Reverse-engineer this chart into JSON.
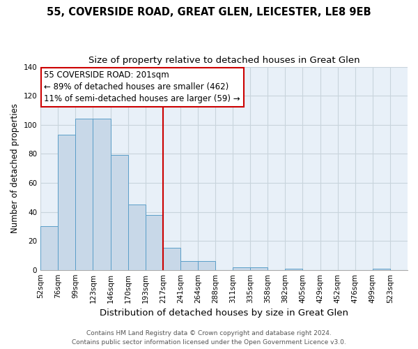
{
  "title": "55, COVERSIDE ROAD, GREAT GLEN, LEICESTER, LE8 9EB",
  "subtitle": "Size of property relative to detached houses in Great Glen",
  "xlabel": "Distribution of detached houses by size in Great Glen",
  "ylabel": "Number of detached properties",
  "bar_labels": [
    "52sqm",
    "76sqm",
    "99sqm",
    "123sqm",
    "146sqm",
    "170sqm",
    "193sqm",
    "217sqm",
    "241sqm",
    "264sqm",
    "288sqm",
    "311sqm",
    "335sqm",
    "358sqm",
    "382sqm",
    "405sqm",
    "429sqm",
    "452sqm",
    "476sqm",
    "499sqm",
    "523sqm"
  ],
  "bar_values": [
    30,
    93,
    104,
    104,
    79,
    45,
    38,
    15,
    6,
    6,
    0,
    2,
    2,
    0,
    1,
    0,
    0,
    0,
    0,
    1,
    0
  ],
  "bar_color": "#c8d8e8",
  "bar_edge_color": "#5a9ec8",
  "vline_color": "#cc0000",
  "annotation_text": "55 COVERSIDE ROAD: 201sqm\n← 89% of detached houses are smaller (462)\n11% of semi-detached houses are larger (59) →",
  "annotation_box_color": "#ffffff",
  "annotation_box_edge_color": "#cc0000",
  "ylim": [
    0,
    140
  ],
  "yticks": [
    0,
    20,
    40,
    60,
    80,
    100,
    120,
    140
  ],
  "footer_line1": "Contains HM Land Registry data © Crown copyright and database right 2024.",
  "footer_line2": "Contains public sector information licensed under the Open Government Licence v3.0.",
  "background_color": "#ffffff",
  "grid_color": "#c8d4dc",
  "title_fontsize": 10.5,
  "subtitle_fontsize": 9.5,
  "xlabel_fontsize": 9.5,
  "ylabel_fontsize": 8.5,
  "tick_fontsize": 7.5,
  "annotation_fontsize": 8.5,
  "footer_fontsize": 6.5
}
